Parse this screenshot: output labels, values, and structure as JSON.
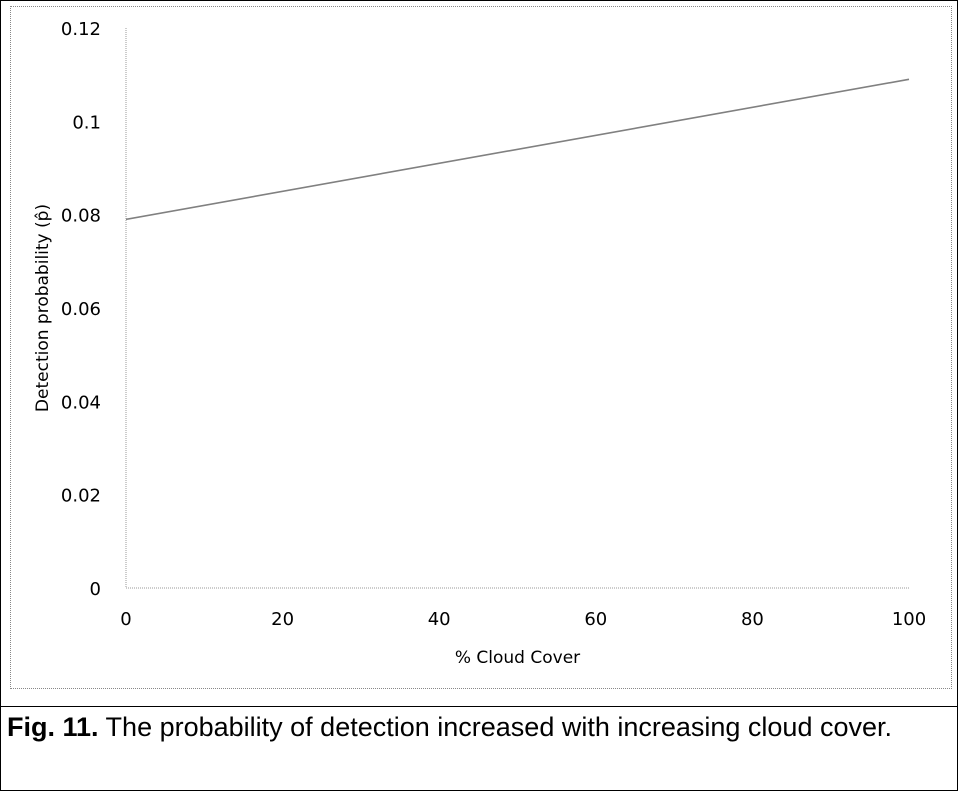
{
  "chart_data": {
    "type": "line",
    "x": [
      0,
      100
    ],
    "y": [
      0.079,
      0.109
    ],
    "xlabel": "% Cloud Cover",
    "ylabel": "Detection probability (p̂)",
    "xlim": [
      0,
      100
    ],
    "ylim": [
      0,
      0.12
    ],
    "xticks": [
      0,
      20,
      40,
      60,
      80,
      100
    ],
    "yticks": [
      0,
      0.02,
      0.04,
      0.06,
      0.08,
      0.1,
      0.12
    ],
    "xtick_labels": [
      "0",
      "20",
      "40",
      "60",
      "80",
      "100"
    ],
    "ytick_labels": [
      "0",
      "0.02",
      "0.04",
      "0.06",
      "0.08",
      "0.1",
      "0.12"
    ],
    "grid": false,
    "line_color": "#808080"
  },
  "caption": {
    "label": "Fig. 11.",
    "text": " The probability of detection increased with increasing cloud cover."
  }
}
